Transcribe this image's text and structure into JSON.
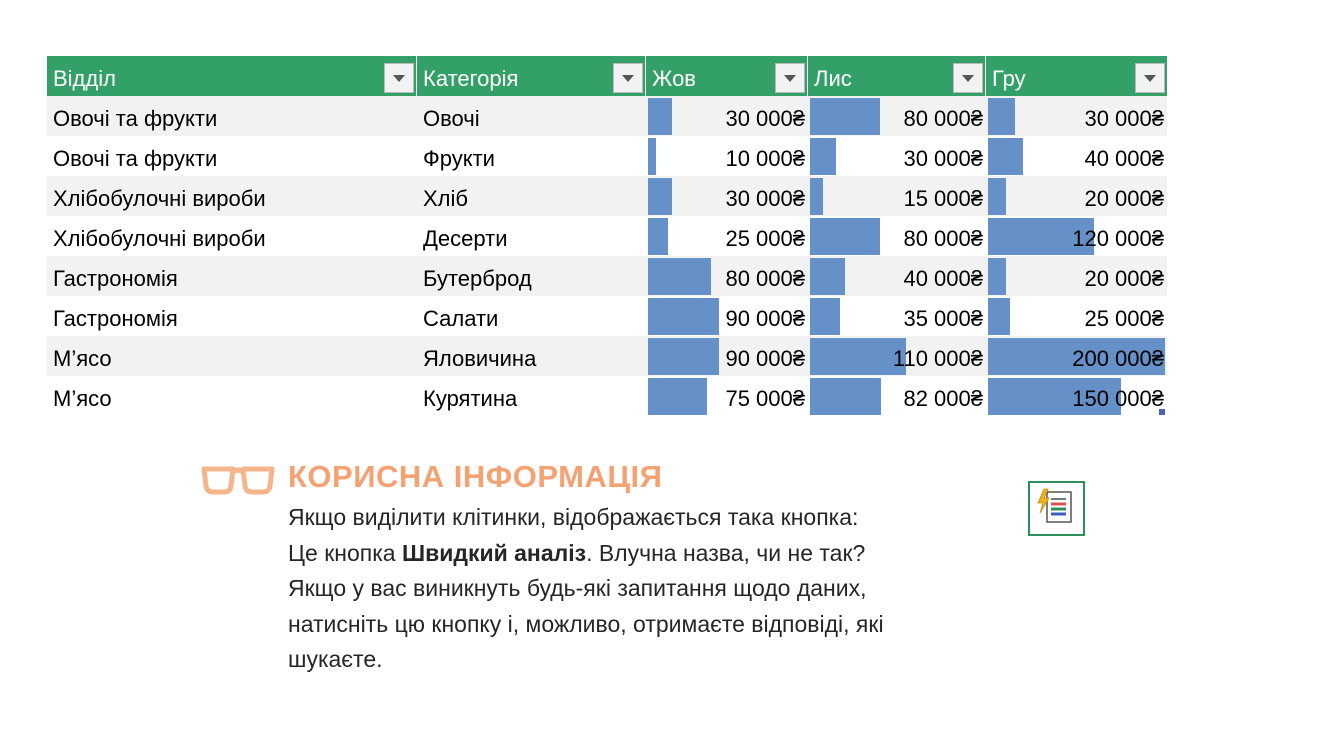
{
  "table": {
    "headers": [
      "Відділ",
      "Категорія",
      "Жов",
      "Лис",
      "Гру"
    ],
    "bar_color": "#6690c8",
    "header_color": "#33a068",
    "rows": [
      {
        "dept": "Овочі та фрукти",
        "cat": "Овочі",
        "oct": "30 000₴",
        "nov": "80 000₴",
        "dec": "30 000₴",
        "oct_v": 30000,
        "nov_v": 80000,
        "dec_v": 30000
      },
      {
        "dept": "Овочі та фрукти",
        "cat": "Фрукти",
        "oct": "10 000₴",
        "nov": "30 000₴",
        "dec": "40 000₴",
        "oct_v": 10000,
        "nov_v": 30000,
        "dec_v": 40000
      },
      {
        "dept": "Хлібобулочні вироби",
        "cat": "Хліб",
        "oct": "30 000₴",
        "nov": "15 000₴",
        "dec": "20 000₴",
        "oct_v": 30000,
        "nov_v": 15000,
        "dec_v": 20000
      },
      {
        "dept": "Хлібобулочні вироби",
        "cat": "Десерти",
        "oct": "25 000₴",
        "nov": "80 000₴",
        "dec": "120 000₴",
        "oct_v": 25000,
        "nov_v": 80000,
        "dec_v": 120000
      },
      {
        "dept": "Гастрономія",
        "cat": "Бутерброд",
        "oct": "80 000₴",
        "nov": "40 000₴",
        "dec": "20 000₴",
        "oct_v": 80000,
        "nov_v": 40000,
        "dec_v": 20000
      },
      {
        "dept": "Гастрономія",
        "cat": "Салати",
        "oct": "90 000₴",
        "nov": "35 000₴",
        "dec": "25 000₴",
        "oct_v": 90000,
        "nov_v": 35000,
        "dec_v": 25000
      },
      {
        "dept": "М’ясо",
        "cat": "Яловичина",
        "oct": "90 000₴",
        "nov": "110 000₴",
        "dec": "200 000₴",
        "oct_v": 90000,
        "nov_v": 110000,
        "dec_v": 200000
      },
      {
        "dept": "М’ясо",
        "cat": "Курятина",
        "oct": "75 000₴",
        "nov": "82 000₴",
        "dec": "150 000₴",
        "oct_v": 75000,
        "nov_v": 82000,
        "dec_v": 150000
      }
    ]
  },
  "tip": {
    "title": "КОРИСНА ІНФОРМАЦІЯ",
    "title_color": "#f5a273",
    "line1": "Якщо виділити клітинки, відображається така кнопка:",
    "line2_prefix": "Це кнопка ",
    "line2_bold": "Швидкий аналіз",
    "line2_suffix": ". Влучна назва, чи не так?",
    "line3": "Якщо у вас виникнуть будь-які запитання щодо даних,",
    "line4": "натисніть цю кнопку і, можливо, отримаєте відповіді, які",
    "line5": "шукаєте."
  },
  "icons": {
    "glasses": "glasses-icon",
    "quick_analysis": "quick-analysis-icon"
  }
}
